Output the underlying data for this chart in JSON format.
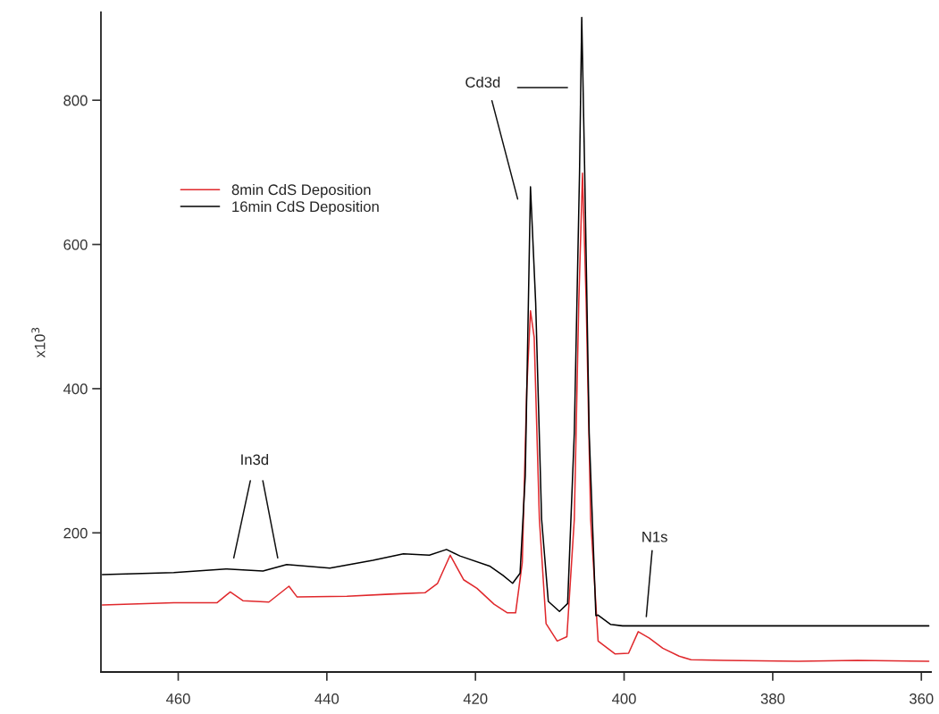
{
  "chart_data": {
    "type": "line",
    "xlabel": null,
    "ylabel": "x10$^{3}$",
    "xlim": [
      470.4,
      358.7
    ],
    "xticks": [
      460,
      440,
      420,
      400,
      380,
      360
    ],
    "ylim": [
      7,
      922
    ],
    "yticks": [
      200,
      400,
      600,
      800
    ],
    "grid": false,
    "legend": "top left",
    "marker": "none",
    "line_style": "solid",
    "series": [
      {
        "name": "8min CdS Deposition",
        "color": "#e0282c",
        "x": [
          470.2,
          460.6,
          454.8,
          453.0,
          451.3,
          447.8,
          445.1,
          444.0,
          437.3,
          431.5,
          426.8,
          425.1,
          423.4,
          421.6,
          419.8,
          417.5,
          415.7,
          414.6,
          413.7,
          413.1,
          412.6,
          412.1,
          411.4,
          410.5,
          409.0,
          407.7,
          406.7,
          406.1,
          405.6,
          405.1,
          404.5,
          403.5,
          401.2,
          399.4,
          398.1,
          396.6,
          394.8,
          392.6,
          391.0,
          386.6,
          376.6,
          368.6,
          359.0
        ],
        "values": [
          100,
          103,
          103,
          118,
          106,
          104,
          126,
          111,
          112,
          115,
          117,
          130,
          169,
          135,
          123,
          101,
          89,
          89,
          159,
          399,
          508,
          471,
          219,
          74,
          50,
          56,
          219,
          519,
          699,
          519,
          219,
          50,
          32,
          33,
          63,
          54,
          40,
          29,
          24,
          23,
          22,
          23,
          22
        ]
      },
      {
        "name": "16min CdS Deposition",
        "color": "#000000",
        "x": [
          470.2,
          460.6,
          453.6,
          448.6,
          445.4,
          439.6,
          433.8,
          429.7,
          426.2,
          423.9,
          422.1,
          418.1,
          416.3,
          415.0,
          414.0,
          413.3,
          412.6,
          411.9,
          411.1,
          410.2,
          408.7,
          407.6,
          406.7,
          406.0,
          405.7,
          405.3,
          404.7,
          403.8,
          403.5,
          401.8,
          400.2,
          397.4,
          390.0,
          380.0,
          370.0,
          359.0
        ],
        "values": [
          142,
          145,
          150,
          147,
          156,
          151,
          162,
          171,
          169,
          177,
          168,
          154,
          141,
          130,
          144,
          279,
          680,
          519,
          219,
          105,
          91,
          102,
          339,
          699,
          915,
          699,
          339,
          85,
          86,
          73,
          71,
          71,
          71,
          71,
          71,
          71
        ]
      }
    ],
    "annotations": [
      "In3d",
      "Cd3d",
      "N1s"
    ]
  }
}
